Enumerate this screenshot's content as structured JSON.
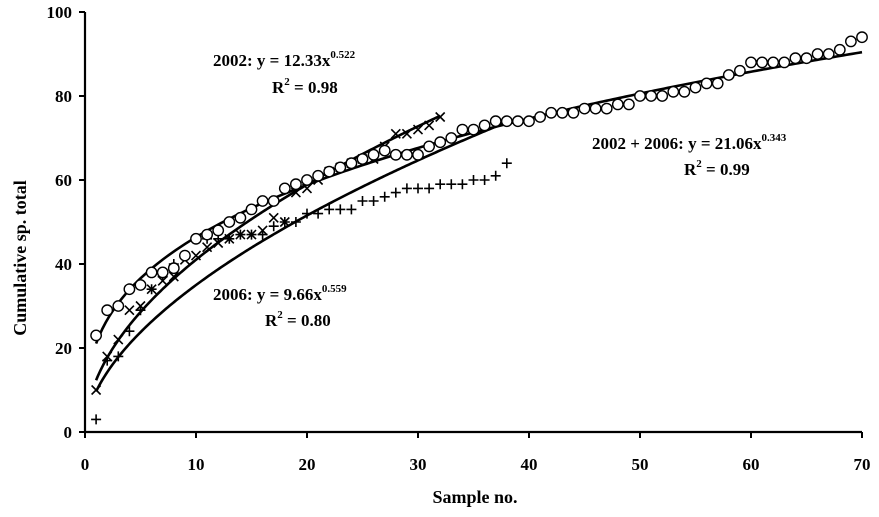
{
  "chart_data": {
    "type": "scatter",
    "title": "",
    "xlabel": "Sample no.",
    "ylabel": "Cumulative sp. total",
    "xlim": [
      0,
      70
    ],
    "ylim": [
      0,
      100
    ],
    "xticks": [
      0,
      10,
      20,
      30,
      40,
      50,
      60,
      70
    ],
    "yticks": [
      0,
      20,
      40,
      60,
      80,
      100
    ],
    "grid": false,
    "legend": "none",
    "series": [
      {
        "marker": "cross",
        "points": [
          [
            1,
            10
          ],
          [
            2,
            18
          ],
          [
            3,
            22
          ],
          [
            4,
            29
          ],
          [
            5,
            30
          ],
          [
            6,
            34
          ],
          [
            7,
            36
          ],
          [
            8,
            37
          ],
          [
            9,
            41
          ],
          [
            10,
            42
          ],
          [
            11,
            44
          ],
          [
            12,
            45
          ],
          [
            13,
            46
          ],
          [
            14,
            47
          ],
          [
            15,
            47
          ],
          [
            16,
            48
          ],
          [
            17,
            51
          ],
          [
            18,
            50
          ],
          [
            19,
            57
          ],
          [
            20,
            58
          ],
          [
            21,
            60
          ],
          [
            22,
            62
          ],
          [
            23,
            63
          ],
          [
            24,
            64
          ],
          [
            25,
            65
          ],
          [
            26,
            65
          ],
          [
            27,
            68
          ],
          [
            28,
            71
          ],
          [
            29,
            71
          ],
          [
            30,
            72
          ],
          [
            31,
            73
          ],
          [
            32,
            75
          ]
        ]
      },
      {
        "marker": "plus",
        "points": [
          [
            1,
            3
          ],
          [
            2,
            17
          ],
          [
            3,
            18
          ],
          [
            4,
            24
          ],
          [
            5,
            29
          ],
          [
            6,
            34
          ],
          [
            7,
            37
          ],
          [
            8,
            40
          ],
          [
            9,
            42
          ],
          [
            10,
            46
          ],
          [
            11,
            46
          ],
          [
            12,
            46
          ],
          [
            13,
            46
          ],
          [
            14,
            47
          ],
          [
            15,
            47
          ],
          [
            16,
            47
          ],
          [
            17,
            49
          ],
          [
            18,
            50
          ],
          [
            19,
            50
          ],
          [
            20,
            52
          ],
          [
            21,
            52
          ],
          [
            22,
            53
          ],
          [
            23,
            53
          ],
          [
            24,
            53
          ],
          [
            25,
            55
          ],
          [
            26,
            55
          ],
          [
            27,
            56
          ],
          [
            28,
            57
          ],
          [
            29,
            58
          ],
          [
            30,
            58
          ],
          [
            31,
            58
          ],
          [
            32,
            59
          ],
          [
            33,
            59
          ],
          [
            34,
            59
          ],
          [
            35,
            60
          ],
          [
            36,
            60
          ],
          [
            37,
            61
          ],
          [
            38,
            64
          ]
        ]
      },
      {
        "marker": "circle",
        "points": [
          [
            1,
            23
          ],
          [
            2,
            29
          ],
          [
            3,
            30
          ],
          [
            4,
            34
          ],
          [
            5,
            35
          ],
          [
            6,
            38
          ],
          [
            7,
            38
          ],
          [
            8,
            39
          ],
          [
            9,
            42
          ],
          [
            10,
            46
          ],
          [
            11,
            47
          ],
          [
            12,
            48
          ],
          [
            13,
            50
          ],
          [
            14,
            51
          ],
          [
            15,
            53
          ],
          [
            16,
            55
          ],
          [
            17,
            55
          ],
          [
            18,
            58
          ],
          [
            19,
            59
          ],
          [
            20,
            60
          ],
          [
            21,
            61
          ],
          [
            22,
            62
          ],
          [
            23,
            63
          ],
          [
            24,
            64
          ],
          [
            25,
            65
          ],
          [
            26,
            66
          ],
          [
            27,
            67
          ],
          [
            28,
            66
          ],
          [
            29,
            66
          ],
          [
            30,
            66
          ],
          [
            31,
            68
          ],
          [
            32,
            69
          ],
          [
            33,
            70
          ],
          [
            34,
            72
          ],
          [
            35,
            72
          ],
          [
            36,
            73
          ],
          [
            37,
            74
          ],
          [
            38,
            74
          ],
          [
            39,
            74
          ],
          [
            40,
            74
          ],
          [
            41,
            75
          ],
          [
            42,
            76
          ],
          [
            43,
            76
          ],
          [
            44,
            76
          ],
          [
            45,
            77
          ],
          [
            46,
            77
          ],
          [
            47,
            77
          ],
          [
            48,
            78
          ],
          [
            49,
            78
          ],
          [
            50,
            80
          ],
          [
            51,
            80
          ],
          [
            52,
            80
          ],
          [
            53,
            81
          ],
          [
            54,
            81
          ],
          [
            55,
            82
          ],
          [
            56,
            83
          ],
          [
            57,
            83
          ],
          [
            58,
            85
          ],
          [
            59,
            86
          ],
          [
            60,
            88
          ],
          [
            61,
            88
          ],
          [
            62,
            88
          ],
          [
            63,
            88
          ],
          [
            64,
            89
          ],
          [
            65,
            89
          ],
          [
            66,
            90
          ],
          [
            67,
            90
          ],
          [
            68,
            91
          ],
          [
            69,
            93
          ],
          [
            70,
            94
          ]
        ]
      }
    ],
    "fits": [
      {
        "a": 12.33,
        "b": 0.522,
        "x_range": [
          1,
          32
        ]
      },
      {
        "a": 9.66,
        "b": 0.559,
        "x_range": [
          1,
          38
        ]
      },
      {
        "a": 21.06,
        "b": 0.343,
        "x_range": [
          1,
          70
        ]
      }
    ]
  },
  "annotations": {
    "fit2002_eq": "2002: y = 12.33x",
    "fit2002_exp": "0.522",
    "fit2002_r2": "R",
    "fit2002_r2sup": "2",
    "fit2002_r2val": " = 0.98",
    "fit2006_eq": "2006: y = 9.66x",
    "fit2006_exp": "0.559",
    "fit2006_r2": "R",
    "fit2006_r2sup": "2",
    "fit2006_r2val": " = 0.80",
    "fitall_eq": "2002 + 2006: y = 21.06x",
    "fitall_exp": "0.343",
    "fitall_r2": "R",
    "fitall_r2sup": "2",
    "fitall_r2val": " = 0.99"
  }
}
